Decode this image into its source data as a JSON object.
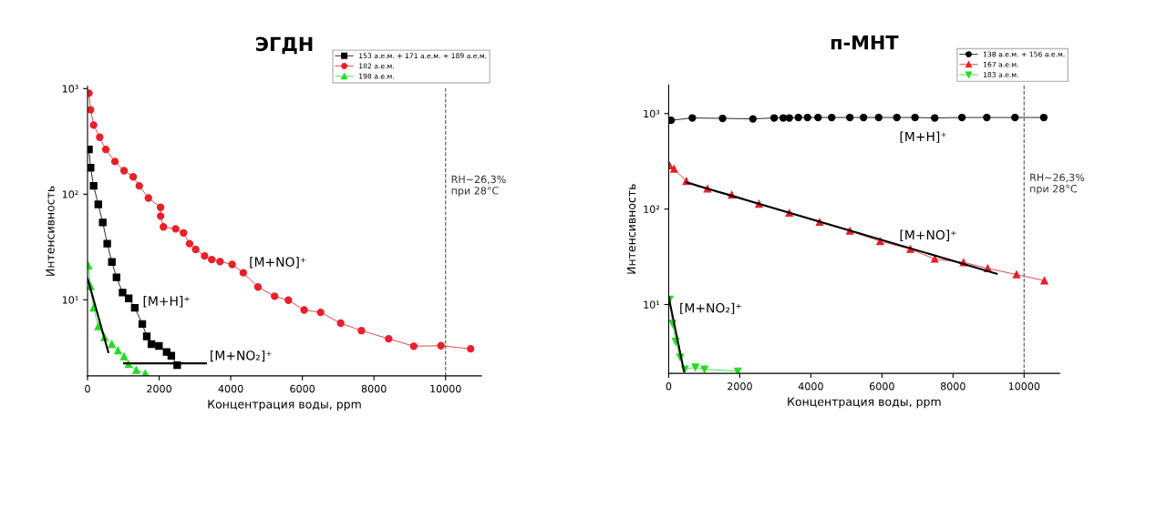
{
  "chart_data": [
    {
      "type": "line",
      "title": "ЭГДН",
      "xlabel": "Концентрация воды, ppm",
      "ylabel": "Интенсивность",
      "log": "y",
      "xlim": [
        0,
        11000
      ],
      "ylim": [
        1.9,
        1050
      ],
      "xticks": [
        0,
        2000,
        4000,
        6000,
        8000,
        10000
      ],
      "yticks": [
        {
          "value": 10,
          "label": "10¹"
        },
        {
          "value": 100,
          "label": "10²"
        },
        {
          "value": 1000,
          "label": "10³"
        }
      ],
      "grid": false,
      "legend": "top right",
      "series": [
        {
          "name": "153 а.е.м. + 171 а.е.м. + 189 а.е.м.",
          "color": "#000000",
          "marker": "square",
          "x": [
            40,
            85,
            170,
            300,
            425,
            550,
            680,
            810,
            980,
            1150,
            1320,
            1530,
            1655,
            1785,
            1995,
            2210,
            2340,
            2505
          ],
          "values": [
            265,
            178,
            120,
            80,
            54,
            34,
            22.8,
            16.3,
            11.7,
            10.3,
            8.4,
            5.9,
            4.5,
            3.8,
            3.65,
            3.2,
            2.95,
            2.4
          ]
        },
        {
          "name": "182 а.е.м.",
          "color": "#e8202a",
          "marker": "circle",
          "x": [
            40,
            85,
            170,
            340,
            510,
            765,
            1020,
            1275,
            1445,
            1700,
            2040,
            2040,
            2120,
            2460,
            2680,
            2850,
            3020,
            3270,
            3470,
            3700,
            4040,
            4350,
            4760,
            5225,
            5610,
            6050,
            6510,
            7070,
            7650,
            8410,
            9110,
            9870,
            10700
          ],
          "values": [
            905,
            630,
            451,
            346,
            265,
            204,
            167,
            146,
            120,
            92,
            75,
            62,
            49,
            47,
            43,
            34,
            30,
            26,
            24,
            23,
            21.6,
            18,
            13.2,
            10.8,
            9.9,
            8,
            7.6,
            6,
            5.1,
            4.27,
            3.63,
            3.67,
            3.43
          ]
        },
        {
          "name": "198 а.е.м.",
          "color": "#22dd22",
          "marker": "triangle",
          "x": [
            25,
            85,
            170,
            300,
            470,
            680,
            850,
            1020,
            1150,
            1360,
            1615
          ],
          "values": [
            21,
            13.4,
            8.4,
            5.6,
            4.4,
            3.8,
            3.3,
            2.9,
            2.45,
            2.16,
            2.0
          ]
        },
        {
          "color": "#000000",
          "marker": "none",
          "x": [
            0,
            580
          ],
          "values": [
            16,
            3.2
          ]
        },
        {
          "color": "#000000",
          "marker": "none",
          "x": [
            1020,
            3310
          ],
          "values": [
            2.5,
            2.5
          ]
        }
      ],
      "ref_lines": [
        {
          "axis": "x",
          "value": 10000,
          "label": "RH~26,3%\nпри 28°C",
          "color": "#555555",
          "line_style": "dashed"
        }
      ],
      "annotations": [
        "[M+NO]⁺",
        "[M+H]⁺",
        "[M+NO₂]⁺"
      ]
    },
    {
      "type": "line",
      "title": "п-МНТ",
      "xlabel": "Концентрация воды, ppm",
      "ylabel": "Интенсивность",
      "log": "y",
      "xlim": [
        0,
        11000
      ],
      "ylim": [
        1.9,
        2000
      ],
      "xticks": [
        0,
        2000,
        4000,
        6000,
        8000,
        10000
      ],
      "yticks": [
        {
          "value": 10,
          "label": "10¹"
        },
        {
          "value": 100,
          "label": "10²"
        },
        {
          "value": 1000,
          "label": "10³"
        }
      ],
      "grid": false,
      "legend": "top right",
      "series": [
        {
          "name": "138 а.е.м. + 156 а.е.м.",
          "color": "#000000",
          "marker": "circle",
          "x": [
            68,
            665,
            1517,
            2370,
            2967,
            3222,
            3393,
            3649,
            3905,
            4203,
            4587,
            5098,
            5482,
            5908,
            6420,
            6931,
            7485,
            8252,
            8951,
            9744,
            10554
          ],
          "values": [
            850,
            900,
            890,
            880,
            900,
            900,
            900,
            910,
            910,
            910,
            910,
            910,
            910,
            910,
            910,
            910,
            900,
            910,
            910,
            910,
            910
          ]
        },
        {
          "name": "167 а.е.м.",
          "color": "#e8202a",
          "marker": "triangle",
          "x": [
            25,
            150,
            495,
            1090,
            1773,
            2540,
            3393,
            4245,
            5098,
            5950,
            6800,
            7485,
            8295,
            8977,
            9787,
            10570
          ],
          "values": [
            285,
            263,
            196,
            163,
            141,
            113,
            91,
            73,
            59,
            46,
            38,
            30,
            27.6,
            23.9,
            20.6,
            17.8
          ]
        },
        {
          "name": "183 а.е.м.",
          "color": "#22dd22",
          "marker": "triangle_down",
          "x": [
            25,
            110,
            196,
            324,
            452,
            750,
            1006,
            1944
          ],
          "values": [
            11.3,
            6.3,
            4.1,
            2.8,
            2.1,
            2.2,
            2.1,
            2.0
          ]
        },
        {
          "color": "#000000",
          "marker": "none",
          "x": [
            500,
            9230
          ],
          "values": [
            190,
            21
          ]
        },
        {
          "color": "#000000",
          "marker": "none",
          "x": [
            0,
            430
          ],
          "values": [
            12,
            2.0
          ]
        }
      ],
      "ref_lines": [
        {
          "axis": "x",
          "value": 10000,
          "label": "RH~26,3%\nпри 28°C",
          "color": "#555555",
          "line_style": "dashed"
        }
      ],
      "annotations": [
        "[M+H]⁺",
        "[M+NO]⁺",
        "[M+NO₂]⁺"
      ]
    }
  ]
}
